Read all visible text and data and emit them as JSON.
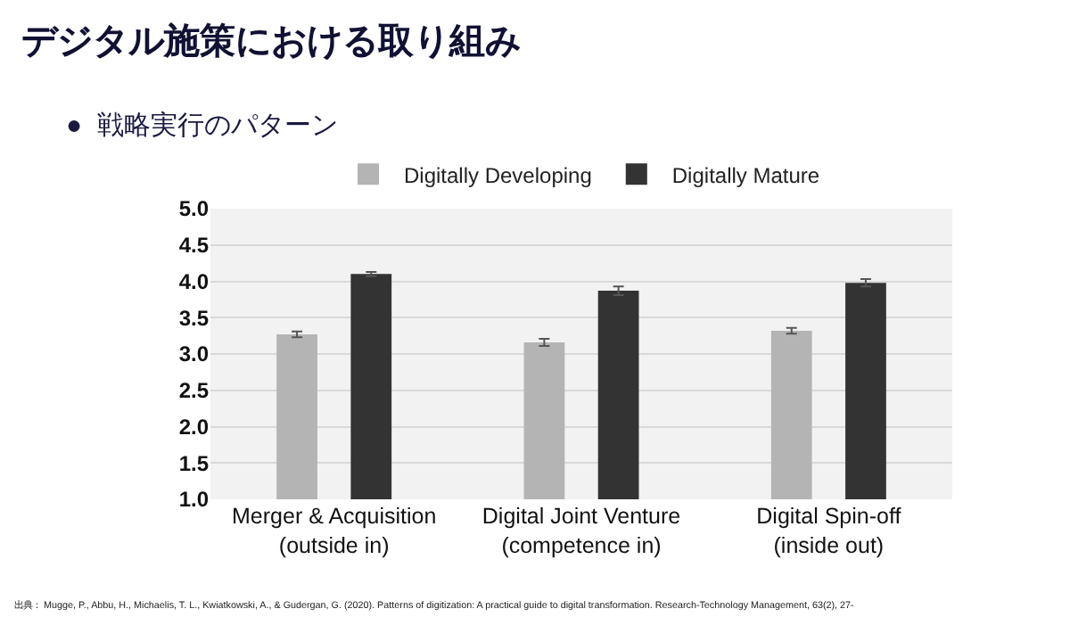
{
  "chart_data": {
    "type": "bar",
    "title": "デジタル施策における取り組み",
    "subtitle": "●  戦略実行のパターン",
    "categories": [
      "Merger & Acquisition\n(outside in)",
      "Digital Joint Venture\n(competence in)",
      "Digital Spin-off\n(inside out)"
    ],
    "series": [
      {
        "name": "Digitally Developing",
        "color": "#b4b4b4",
        "values": [
          3.27,
          3.16,
          3.32
        ],
        "errors": [
          0.04,
          0.05,
          0.04
        ]
      },
      {
        "name": "Digitally Mature",
        "color": "#333333",
        "values": [
          4.1,
          3.87,
          3.98
        ],
        "errors": [
          0.03,
          0.06,
          0.05
        ]
      }
    ],
    "ylim": [
      1,
      5
    ],
    "yticks": [
      {
        "value": 1,
        "label": "1.0"
      },
      {
        "value": 1.5,
        "label": "1.5"
      },
      {
        "value": 2,
        "label": "2.0"
      },
      {
        "value": 2.5,
        "label": "2.5"
      },
      {
        "value": 3,
        "label": "3.0"
      },
      {
        "value": 3.5,
        "label": "3.5"
      },
      {
        "value": 4,
        "label": "4.0"
      },
      {
        "value": 4.5,
        "label": "4.5"
      },
      {
        "value": 5,
        "label": "5.0"
      }
    ],
    "grid": "y",
    "legend": "top",
    "annotations": [
      "出典： Mugge, P., Abbu, H., Michaelis, T. L., Kwiatkowski, A., & Gudergan, G. (2020). Patterns of digitization: A practical guide to digital transformation. Research-Technology Management, 63(2), 27-"
    ]
  }
}
